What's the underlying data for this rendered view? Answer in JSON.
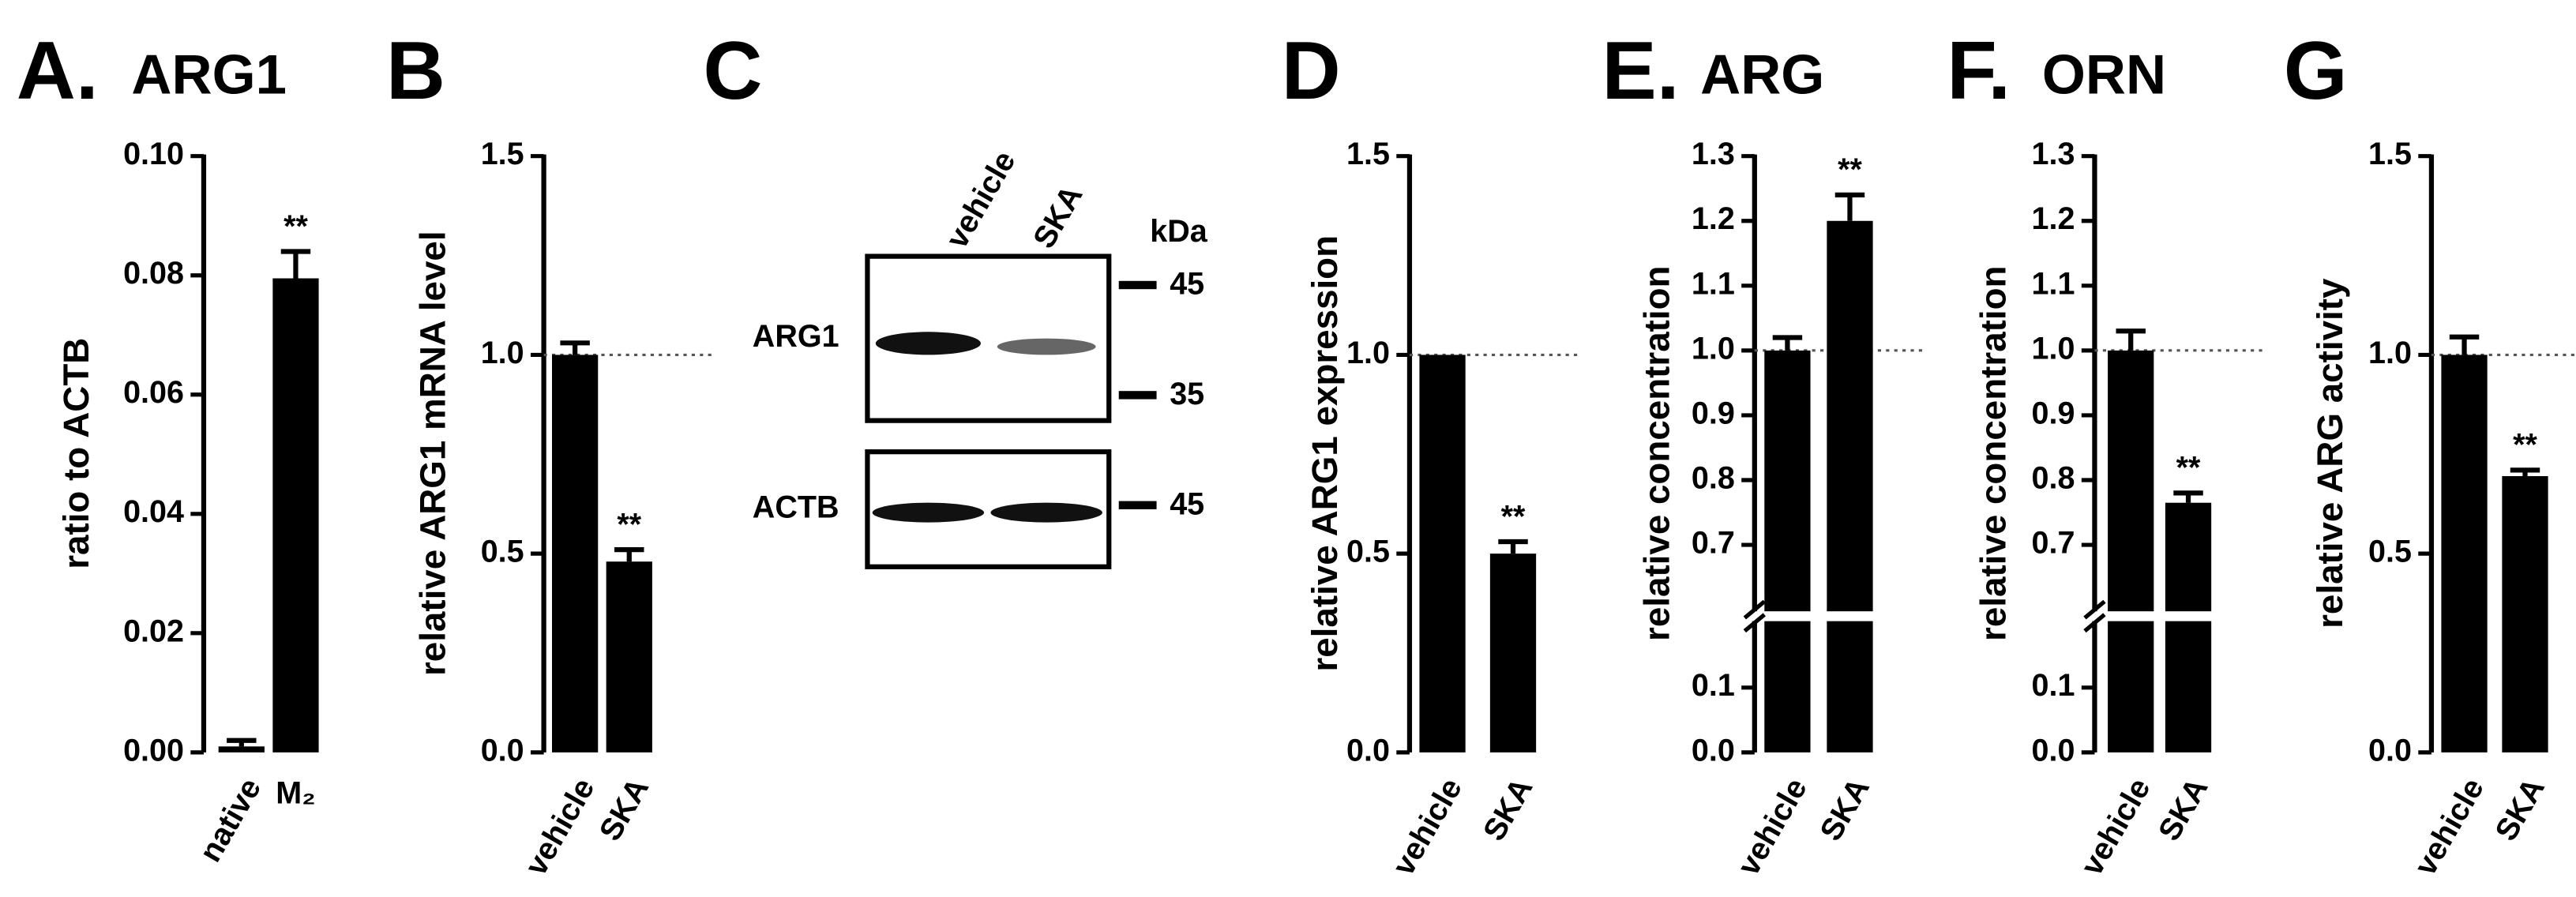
{
  "chart_data": [
    {
      "type": "bar",
      "panel": "A.",
      "title": "ARG1",
      "y_label": "ratio to ACTB",
      "categories": [
        "native",
        "M₂"
      ],
      "values": [
        0.001,
        0.0795
      ],
      "errors": [
        0.001,
        0.0045
      ],
      "annotations": [
        null,
        "**"
      ],
      "color": "#000000",
      "ylim": [
        0,
        0.1
      ],
      "yticks": [
        {
          "value": 0,
          "label": "0.00"
        },
        0.02,
        0.04,
        0.06,
        0.08,
        {
          "value": 0.1,
          "label": "0.10"
        }
      ]
    },
    {
      "type": "bar",
      "panel": "B",
      "y_label": "relative ARG1 mRNA level",
      "categories": [
        "vehicle",
        "SKA"
      ],
      "values": [
        1.0,
        0.48
      ],
      "errors": [
        0.03,
        0.03
      ],
      "annotations": [
        null,
        "**"
      ],
      "color": "#000000",
      "reference_line": 1.0,
      "ylim": [
        0,
        1.5
      ],
      "yticks": [
        {
          "value": 0,
          "label": "0.0"
        },
        0.5,
        {
          "value": 1,
          "label": "1.0"
        },
        1.5
      ]
    },
    {
      "type": "bar",
      "panel": "D",
      "y_label": "relative ARG1 expression",
      "categories": [
        "vehicle",
        "SKA"
      ],
      "values": [
        1.0,
        0.5
      ],
      "errors": [
        null,
        0.03
      ],
      "annotations": [
        null,
        "**"
      ],
      "color": "#000000",
      "reference_line": 1.0,
      "ylim": [
        0,
        1.5
      ],
      "yticks": [
        {
          "value": 0,
          "label": "0.0"
        },
        0.5,
        {
          "value": 1,
          "label": "1.0"
        },
        1.5
      ]
    },
    {
      "type": "bar",
      "panel": "E.",
      "title": "ARG",
      "y_label": "relative concentration",
      "categories": [
        "vehicle",
        "SKA"
      ],
      "values": [
        1.0,
        1.2
      ],
      "errors": [
        0.02,
        0.04
      ],
      "annotations": [
        null,
        "**"
      ],
      "color": "#000000",
      "reference_line": 1.0,
      "ylim": [
        0,
        1.3
      ],
      "ybreak": [
        0.2,
        0.6
      ],
      "yticks": [
        {
          "value": 0,
          "label": "0.0"
        },
        0.1,
        0.7,
        0.8,
        0.9,
        {
          "value": 1,
          "label": "1.0"
        },
        1.1,
        1.2,
        1.3
      ]
    },
    {
      "type": "bar",
      "panel": "F.",
      "title": "ORN",
      "y_label": "relative concentration",
      "categories": [
        "vehicle",
        "SKA"
      ],
      "values": [
        1.0,
        0.765
      ],
      "errors": [
        0.03,
        0.015
      ],
      "annotations": [
        null,
        "**"
      ],
      "color": "#000000",
      "reference_line": 1.0,
      "ylim": [
        0,
        1.3
      ],
      "ybreak": [
        0.2,
        0.6
      ],
      "yticks": [
        {
          "value": 0,
          "label": "0.0"
        },
        0.1,
        0.7,
        0.8,
        0.9,
        {
          "value": 1,
          "label": "1.0"
        },
        1.1,
        1.2,
        1.3
      ]
    },
    {
      "type": "bar",
      "panel": "G",
      "y_label": "relative ARG activity",
      "categories": [
        "vehicle",
        "SKA"
      ],
      "values": [
        1.0,
        0.695
      ],
      "errors": [
        0.045,
        0.015
      ],
      "annotations": [
        null,
        "**"
      ],
      "color": "#000000",
      "reference_line": 1.0,
      "ylim": [
        0,
        1.5
      ],
      "yticks": [
        {
          "value": 0,
          "label": "0.0"
        },
        0.5,
        {
          "value": 1,
          "label": "1.0"
        },
        1.5
      ]
    }
  ],
  "blot": {
    "panel": "C",
    "lanes": [
      "vehicle",
      "SKA"
    ],
    "unit": "kDa",
    "rows": [
      {
        "label": "ARG1",
        "markers": [
          "45",
          "35"
        ]
      },
      {
        "label": "ACTB",
        "markers": [
          "45"
        ]
      }
    ]
  }
}
